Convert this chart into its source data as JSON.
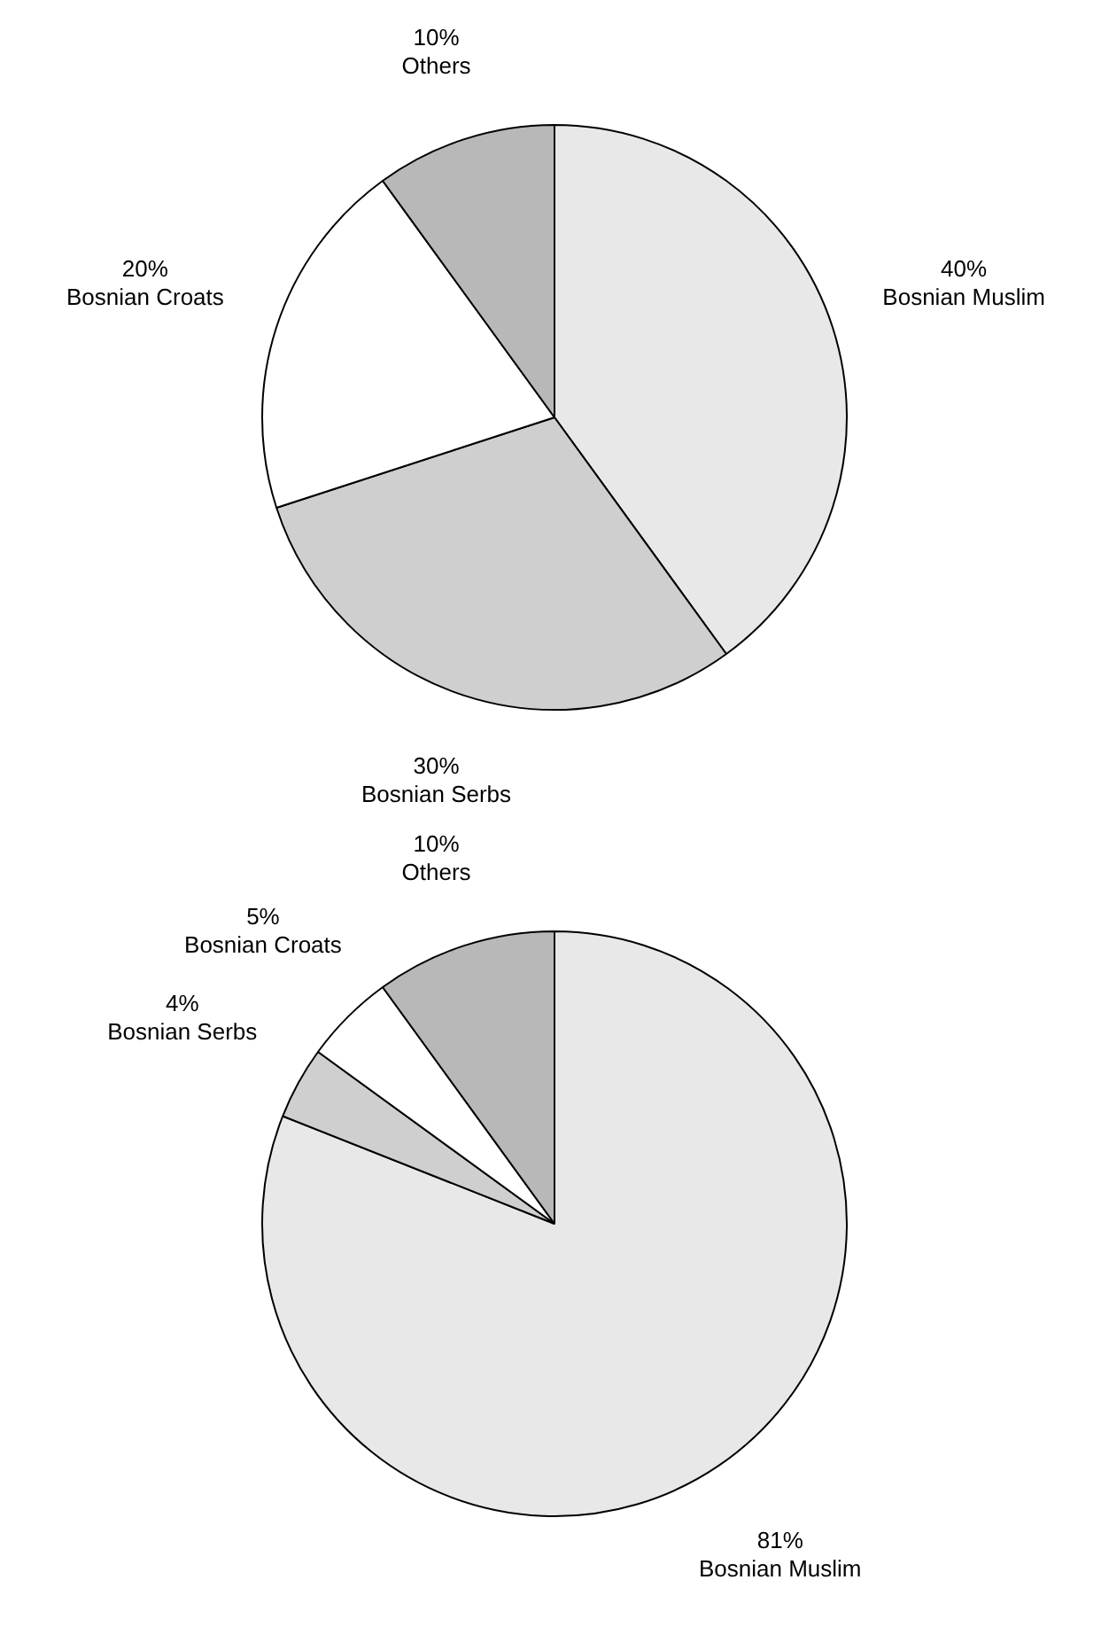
{
  "chart_data": [
    {
      "type": "pie",
      "categories": [
        "Bosnian Muslim",
        "Bosnian Serbs",
        "Bosnian Croats",
        "Others"
      ],
      "values": [
        40,
        30,
        20,
        10
      ],
      "value_labels": [
        "40%",
        "30%",
        "20%",
        "10%"
      ],
      "colors": [
        "#e8e8e8",
        "#cfcfcf",
        "#ffffff",
        "#b8b8b8"
      ]
    },
    {
      "type": "pie",
      "categories": [
        "Bosnian Muslim",
        "Bosnian Serbs",
        "Bosnian Croats",
        "Others"
      ],
      "values": [
        81,
        4,
        5,
        10
      ],
      "value_labels": [
        "81%",
        "4%",
        "5%",
        "10%"
      ],
      "colors": [
        "#e8e8e8",
        "#cfcfcf",
        "#ffffff",
        "#b8b8b8"
      ]
    }
  ]
}
